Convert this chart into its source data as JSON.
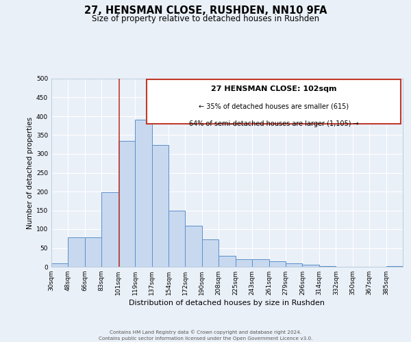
{
  "title": "27, HENSMAN CLOSE, RUSHDEN, NN10 9FA",
  "subtitle": "Size of property relative to detached houses in Rushden",
  "xlabel": "Distribution of detached houses by size in Rushden",
  "ylabel": "Number of detached properties",
  "bar_labels": [
    "30sqm",
    "48sqm",
    "66sqm",
    "83sqm",
    "101sqm",
    "119sqm",
    "137sqm",
    "154sqm",
    "172sqm",
    "190sqm",
    "208sqm",
    "225sqm",
    "243sqm",
    "261sqm",
    "279sqm",
    "296sqm",
    "314sqm",
    "332sqm",
    "350sqm",
    "367sqm",
    "385sqm"
  ],
  "bar_values": [
    10,
    78,
    78,
    198,
    335,
    390,
    323,
    150,
    110,
    73,
    30,
    20,
    20,
    15,
    10,
    5,
    2,
    0,
    0,
    0,
    2
  ],
  "bar_color": "#c8d9ef",
  "bar_edge_color": "#5b8fc9",
  "annotation_title": "27 HENSMAN CLOSE: 102sqm",
  "annotation_line1": "← 35% of detached houses are smaller (615)",
  "annotation_line2": "64% of semi-detached houses are larger (1,105) →",
  "vline_color": "#c0392b",
  "annotation_box_color": "#c0392b",
  "ylim": [
    0,
    500
  ],
  "footer1": "Contains HM Land Registry data © Crown copyright and database right 2024.",
  "footer2": "Contains public sector information licensed under the Open Government Licence v3.0.",
  "bg_color": "#eaf0f8",
  "plot_bg_color": "#eaf0f8",
  "grid_color": "#ffffff"
}
